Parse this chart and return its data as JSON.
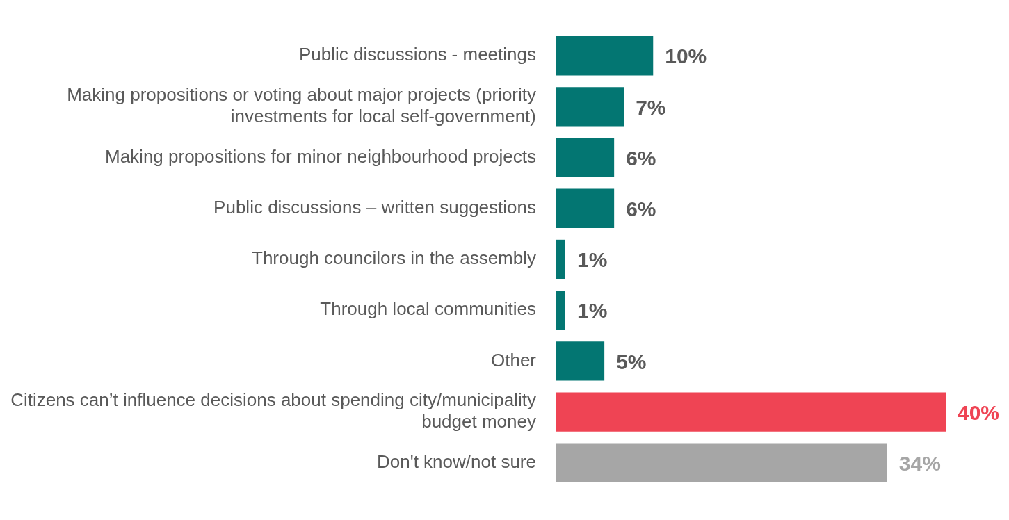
{
  "chart_data": {
    "type": "bar",
    "orientation": "horizontal",
    "categories": [
      "Public discussions - meetings",
      "Making propositions or voting about major projects (priority investments for local self-government)",
      "Making propositions for minor neighbourhood projects",
      "Public discussions – written suggestions",
      "Through councilors in the assembly",
      "Through local communities",
      "Other",
      "Citizens can’t influence decisions about spending city/municipality budget money",
      "Don't know/not sure"
    ],
    "values": [
      10,
      7,
      6,
      6,
      1,
      1,
      5,
      40,
      34
    ],
    "colors": [
      "#037672",
      "#037672",
      "#037672",
      "#037672",
      "#037672",
      "#037672",
      "#037672",
      "#ef4454",
      "#a6a6a6"
    ],
    "value_labels": [
      "10%",
      "7%",
      "6%",
      "6%",
      "1%",
      "1%",
      "5%",
      "40%",
      "34%"
    ],
    "xlim": [
      0,
      40
    ],
    "legend": false
  }
}
